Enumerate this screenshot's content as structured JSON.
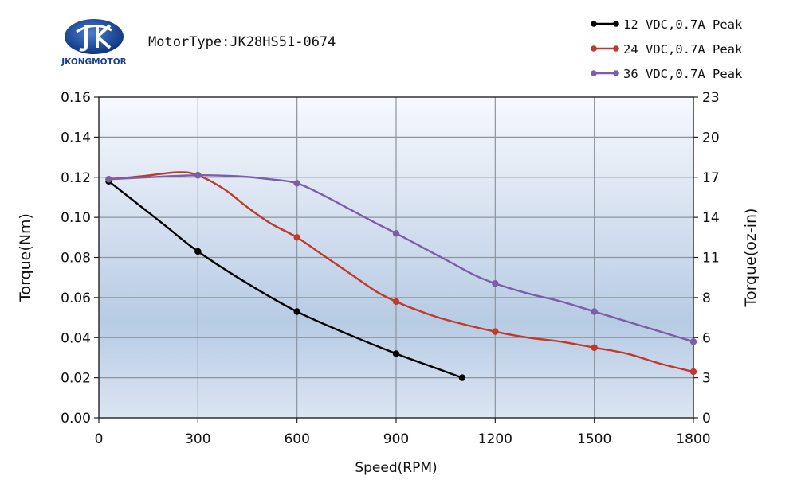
{
  "logo": {
    "text": "JKONGMOTOR"
  },
  "motor_type": "MotorType:JK28HS51-0674",
  "chart_data": {
    "type": "line",
    "title": "MotorType:JK28HS51-0674",
    "xlabel": "Speed(RPM)",
    "ylabel": "Torque(Nm)",
    "y2label": "Torque(oz-in)",
    "xlim": [
      0,
      1800
    ],
    "ylim": [
      0,
      0.16
    ],
    "y2lim": [
      0,
      23
    ],
    "xticks": [
      "0",
      "300",
      "600",
      "900",
      "1200",
      "1500",
      "1800"
    ],
    "yticks": [
      "0.00",
      "0.02",
      "0.04",
      "0.06",
      "0.08",
      "0.10",
      "0.12",
      "0.14",
      "0.16"
    ],
    "y2ticks": [
      "0",
      "3",
      "6",
      "8",
      "11",
      "14",
      "17",
      "20",
      "23"
    ],
    "grid": true,
    "legend_position": "top-right",
    "series": [
      {
        "name": "12 VDC,0.7A Peak",
        "color": "#000000",
        "x": [
          30,
          300,
          600,
          900,
          1100
        ],
        "y": [
          0.118,
          0.083,
          0.053,
          0.032,
          0.02
        ],
        "curve_x": [
          30,
          100,
          200,
          300,
          450,
          600,
          750,
          900,
          1000,
          1100
        ],
        "curve_y": [
          0.118,
          0.109,
          0.096,
          0.083,
          0.067,
          0.053,
          0.042,
          0.032,
          0.026,
          0.02
        ]
      },
      {
        "name": "24 VDC,0.7A Peak",
        "color": "#c0392b",
        "x": [
          30,
          300,
          600,
          900,
          1200,
          1500,
          1800
        ],
        "y": [
          0.119,
          0.121,
          0.09,
          0.058,
          0.043,
          0.035,
          0.023
        ],
        "curve_x": [
          30,
          130,
          240,
          300,
          380,
          450,
          520,
          600,
          680,
          760,
          840,
          900,
          960,
          1050,
          1200,
          1300,
          1400,
          1500,
          1600,
          1700,
          1800
        ],
        "curve_y": [
          0.119,
          0.1205,
          0.1225,
          0.121,
          0.114,
          0.105,
          0.097,
          0.09,
          0.081,
          0.072,
          0.063,
          0.058,
          0.054,
          0.049,
          0.043,
          0.04,
          0.038,
          0.035,
          0.032,
          0.027,
          0.023
        ]
      },
      {
        "name": "36 VDC,0.7A Peak",
        "color": "#7b5ea7",
        "x": [
          30,
          300,
          600,
          900,
          1200,
          1500,
          1800
        ],
        "y": [
          0.119,
          0.121,
          0.117,
          0.092,
          0.067,
          0.053,
          0.038
        ],
        "curve_x": [
          30,
          150,
          300,
          420,
          520,
          600,
          680,
          760,
          840,
          900,
          980,
          1060,
          1140,
          1200,
          1300,
          1400,
          1500,
          1600,
          1700,
          1800
        ],
        "curve_y": [
          0.119,
          0.12,
          0.121,
          0.1205,
          0.119,
          0.117,
          0.111,
          0.104,
          0.097,
          0.092,
          0.085,
          0.078,
          0.071,
          0.067,
          0.062,
          0.058,
          0.053,
          0.048,
          0.043,
          0.038
        ]
      }
    ]
  }
}
